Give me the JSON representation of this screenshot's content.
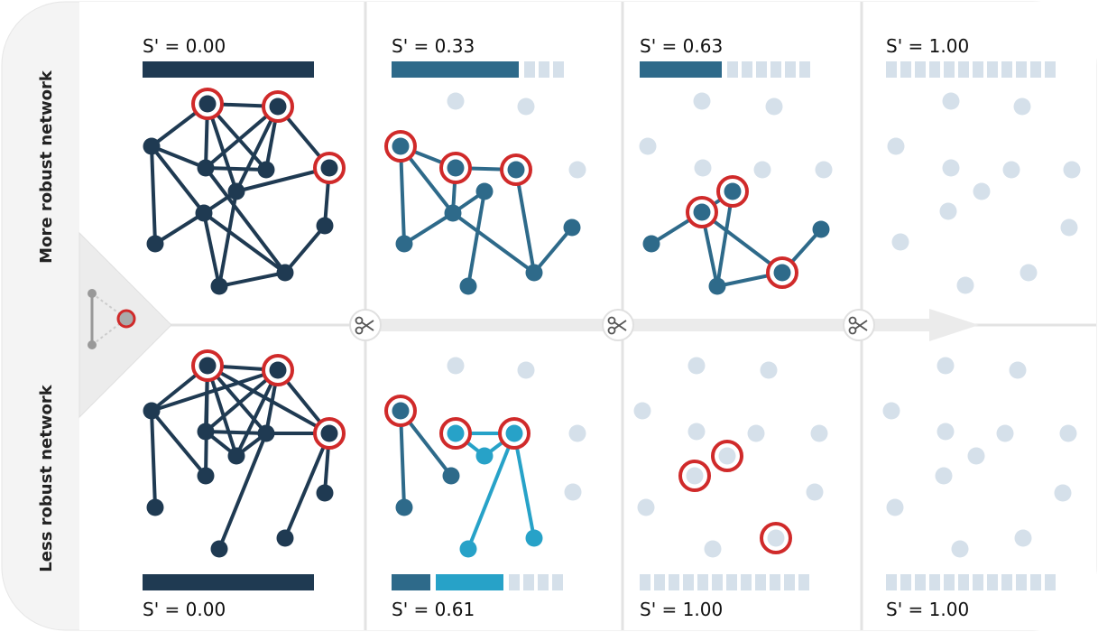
{
  "row_labels": [
    "More robust network",
    "Less robust network"
  ],
  "panels": [
    {
      "top": "S' = 0.00",
      "bottom": "S' = 0.00"
    },
    {
      "top": "S' = 0.33",
      "bottom": "S' = 0.61"
    },
    {
      "top": "S' = 0.63",
      "bottom": "S' = 1.00"
    },
    {
      "top": "S' = 1.00",
      "bottom": "S' = 1.00"
    }
  ]
}
